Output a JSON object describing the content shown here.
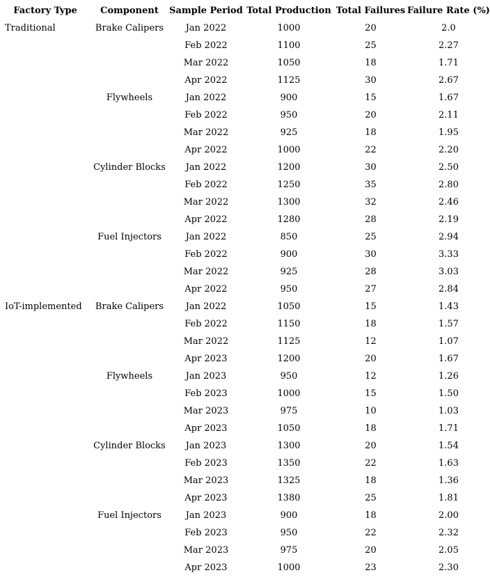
{
  "colors": {
    "text": "#000000",
    "background": "#ffffff"
  },
  "chart_data": {
    "type": "table",
    "columns": [
      "Factory Type",
      "Component",
      "Sample Period",
      "Total Production",
      "Total Failures",
      "Failure Rate (%)"
    ],
    "rows": [
      [
        "Traditional",
        "Brake Calipers",
        "Jan 2022",
        "1000",
        "20",
        "2.0"
      ],
      [
        "",
        "",
        "Feb 2022",
        "1100",
        "25",
        "2.27"
      ],
      [
        "",
        "",
        "Mar 2022",
        "1050",
        "18",
        "1.71"
      ],
      [
        "",
        "",
        "Apr 2022",
        "1125",
        "30",
        "2.67"
      ],
      [
        "",
        "Flywheels",
        "Jan 2022",
        "900",
        "15",
        "1.67"
      ],
      [
        "",
        "",
        "Feb 2022",
        "950",
        "20",
        "2.11"
      ],
      [
        "",
        "",
        "Mar 2022",
        "925",
        "18",
        "1.95"
      ],
      [
        "",
        "",
        "Apr 2022",
        "1000",
        "22",
        "2.20"
      ],
      [
        "",
        "Cylinder Blocks",
        "Jan 2022",
        "1200",
        "30",
        "2.50"
      ],
      [
        "",
        "",
        "Feb 2022",
        "1250",
        "35",
        "2.80"
      ],
      [
        "",
        "",
        "Mar 2022",
        "1300",
        "32",
        "2.46"
      ],
      [
        "",
        "",
        "Apr 2022",
        "1280",
        "28",
        "2.19"
      ],
      [
        "",
        "Fuel Injectors",
        "Jan 2022",
        "850",
        "25",
        "2.94"
      ],
      [
        "",
        "",
        "Feb 2022",
        "900",
        "30",
        "3.33"
      ],
      [
        "",
        "",
        "Mar 2022",
        "925",
        "28",
        "3.03"
      ],
      [
        "",
        "",
        "Apr 2022",
        "950",
        "27",
        "2.84"
      ],
      [
        "IoT-implemented",
        "Brake Calipers",
        "Jan 2022",
        "1050",
        "15",
        "1.43"
      ],
      [
        "",
        "",
        "Feb 2022",
        "1150",
        "18",
        "1.57"
      ],
      [
        "",
        "",
        "Mar 2022",
        "1125",
        "12",
        "1.07"
      ],
      [
        "",
        "",
        "Apr 2023",
        "1200",
        "20",
        "1.67"
      ],
      [
        "",
        "Flywheels",
        "Jan 2023",
        "950",
        "12",
        "1.26"
      ],
      [
        "",
        "",
        "Feb 2023",
        "1000",
        "15",
        "1.50"
      ],
      [
        "",
        "",
        "Mar 2023",
        "975",
        "10",
        "1.03"
      ],
      [
        "",
        "",
        "Apr 2023",
        "1050",
        "18",
        "1.71"
      ],
      [
        "",
        "Cylinder Blocks",
        "Jan 2023",
        "1300",
        "20",
        "1.54"
      ],
      [
        "",
        "",
        "Feb 2023",
        "1350",
        "22",
        "1.63"
      ],
      [
        "",
        "",
        "Mar 2023",
        "1325",
        "18",
        "1.36"
      ],
      [
        "",
        "",
        "Apr 2023",
        "1380",
        "25",
        "1.81"
      ],
      [
        "",
        "Fuel Injectors",
        "Jan 2023",
        "900",
        "18",
        "2.00"
      ],
      [
        "",
        "",
        "Feb 2023",
        "950",
        "22",
        "2.32"
      ],
      [
        "",
        "",
        "Mar 2023",
        "975",
        "20",
        "2.05"
      ],
      [
        "",
        "",
        "Apr 2023",
        "1000",
        "23",
        "2.30"
      ]
    ]
  }
}
